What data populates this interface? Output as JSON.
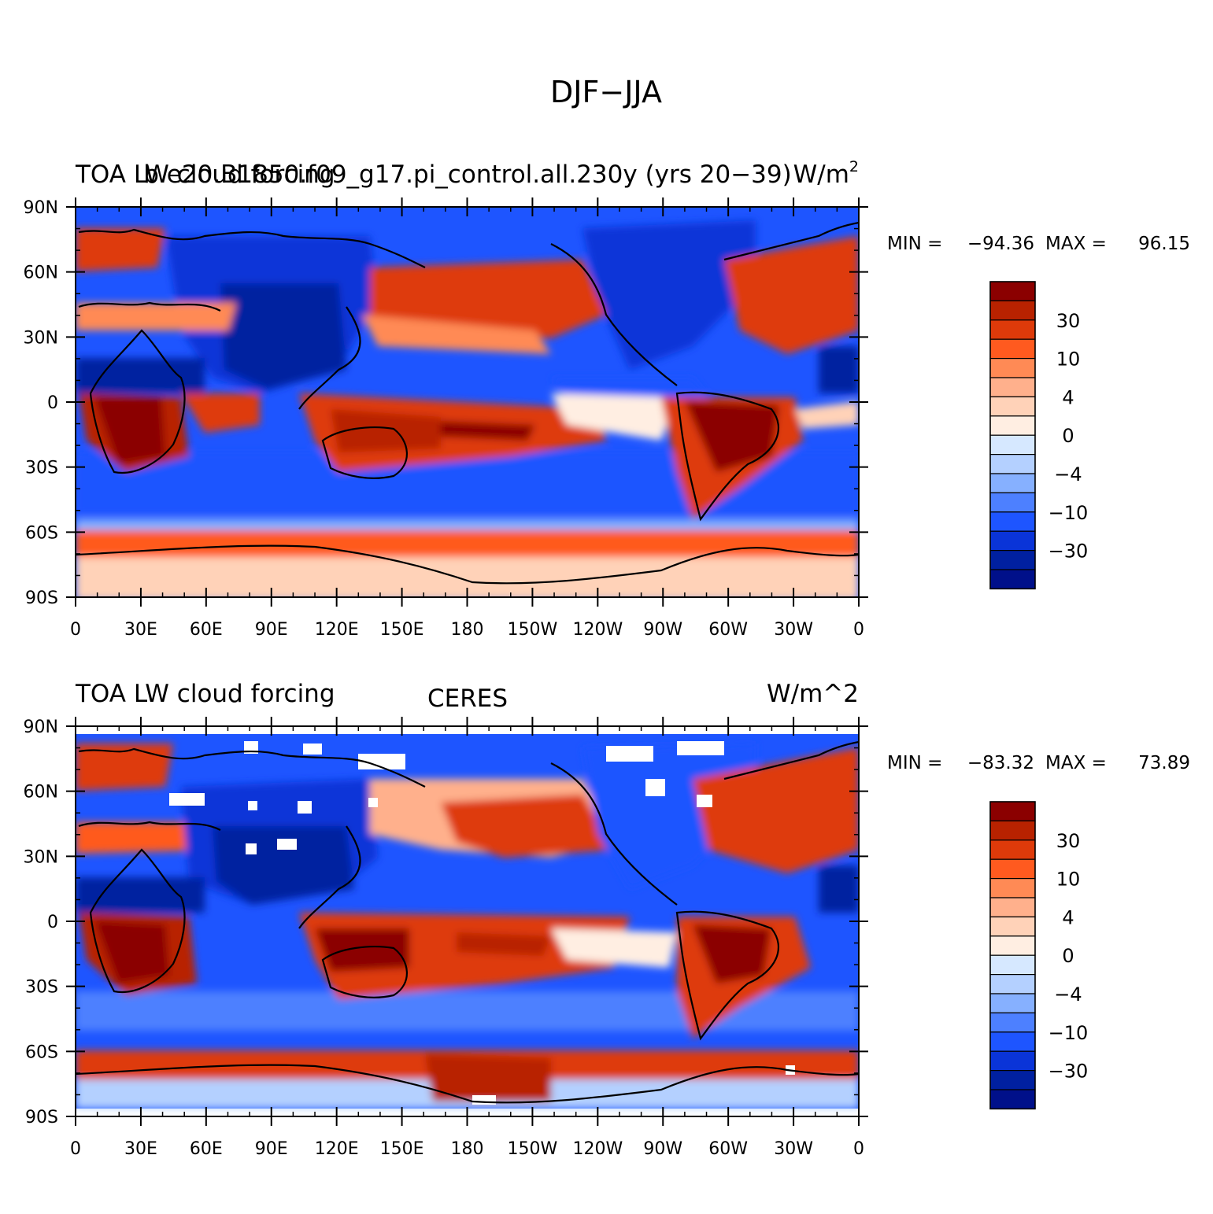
{
  "figure_title": "DJF−JJA",
  "colorbar_levels": [
    "30",
    "10",
    "4",
    "0",
    "−4",
    "−10",
    "−30"
  ],
  "colorbar_colors": [
    "#8b0000",
    "#b82200",
    "#de3a0a",
    "#ff5a1f",
    "#ff8a55",
    "#ffb08c",
    "#ffd2b8",
    "#ffeee2",
    "#d6e8ff",
    "#b4d0ff",
    "#86b0ff",
    "#4d80ff",
    "#1e55ff",
    "#0a34d8",
    "#0020a0",
    "#00108a"
  ],
  "lat_ticks": [
    "90N",
    "60N",
    "30N",
    "0",
    "30S",
    "60S",
    "90S"
  ],
  "lon_ticks": [
    "0",
    "30E",
    "60E",
    "90E",
    "120E",
    "150E",
    "180",
    "150W",
    "120W",
    "90W",
    "60W",
    "30W",
    "0"
  ],
  "panels": [
    {
      "left_title": "TOA LW cloud forcing",
      "center_title": "b.e20.B1850.f09_g17.pi_control.all.230y (yrs 20−39)",
      "right_title": "W/m",
      "right_title_sup": "2",
      "min_label": "MIN =",
      "min_value": "−94.36",
      "max_label": "MAX =",
      "max_value": "96.15"
    },
    {
      "left_title": "TOA LW cloud forcing",
      "center_title": "CERES",
      "right_title": "W/m^2",
      "right_title_sup": "",
      "min_label": "MIN =",
      "min_value": "−83.32",
      "max_label": "MAX =",
      "max_value": "73.89"
    }
  ]
}
